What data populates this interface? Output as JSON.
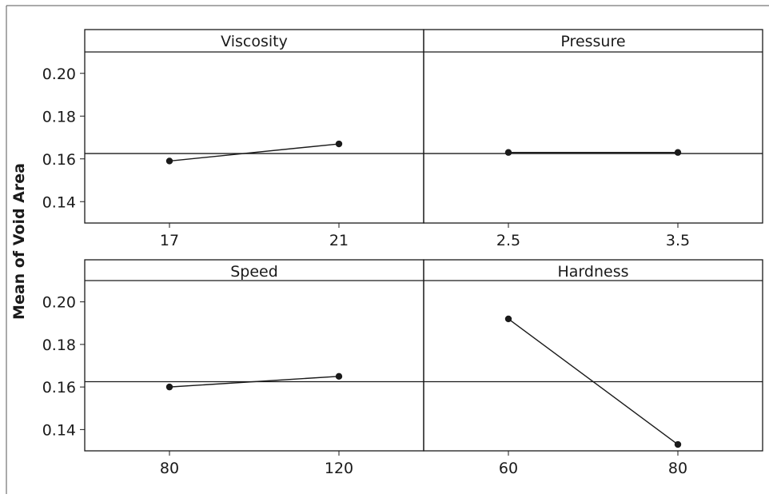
{
  "chart_data": {
    "type": "line",
    "ylabel": "Mean of Void Area",
    "ylim": [
      0.13,
      0.21
    ],
    "yticks": [
      "0.14",
      "0.16",
      "0.18",
      "0.20"
    ],
    "reference_mean": 0.1625,
    "grid": false,
    "panels": [
      {
        "title": "Viscosity",
        "x": [
          "17",
          "21"
        ],
        "values": [
          0.159,
          0.167
        ]
      },
      {
        "title": "Pressure",
        "x": [
          "2.5",
          "3.5"
        ],
        "values": [
          0.163,
          0.163
        ]
      },
      {
        "title": "Speed",
        "x": [
          "80",
          "120"
        ],
        "values": [
          0.16,
          0.165
        ]
      },
      {
        "title": "Hardness",
        "x": [
          "60",
          "80"
        ],
        "values": [
          0.192,
          0.133
        ]
      }
    ]
  }
}
